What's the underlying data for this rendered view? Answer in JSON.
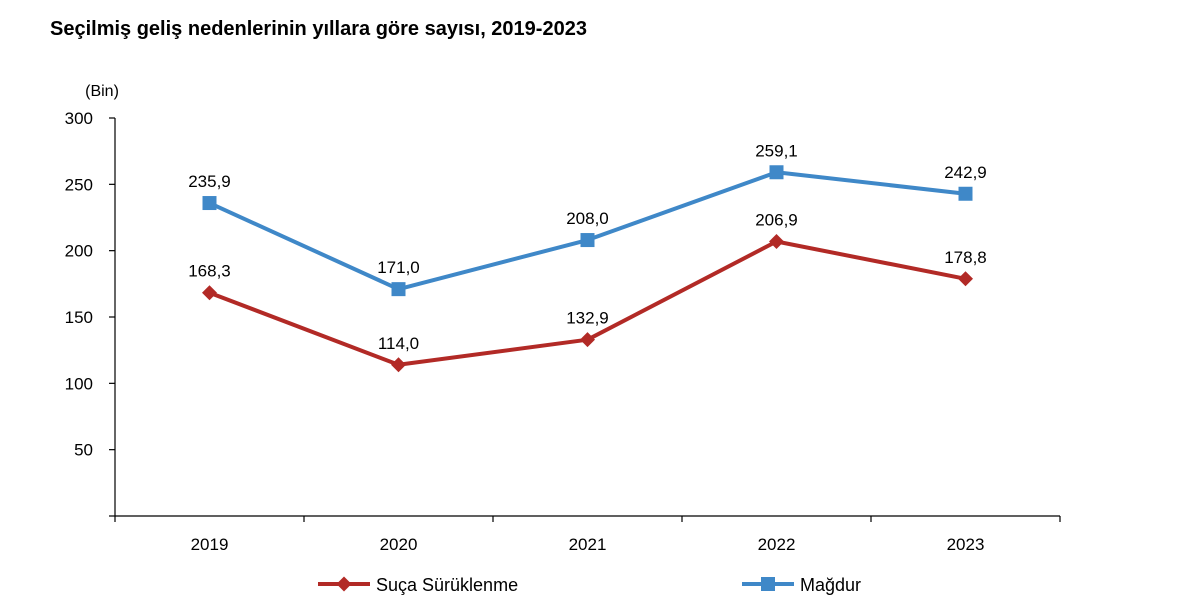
{
  "chart_data": {
    "type": "line",
    "title": "Seçilmiş geliş nedenlerinin yıllara göre sayısı, 2019-2023",
    "unit": "(Bin)",
    "categories": [
      "2019",
      "2020",
      "2021",
      "2022",
      "2023"
    ],
    "ylim": [
      0,
      300
    ],
    "yticks": [
      50,
      100,
      150,
      200,
      250,
      300
    ],
    "grid": false,
    "legend_position": "bottom",
    "series": [
      {
        "name": "Suça Sürüklenme",
        "values": [
          168.3,
          114.0,
          132.9,
          206.9,
          178.8
        ],
        "labels": [
          "168,3",
          "114,0",
          "132,9",
          "206,9",
          "178,8"
        ],
        "color": "#b22a26",
        "marker": "diamond"
      },
      {
        "name": "Mağdur",
        "values": [
          235.9,
          171.0,
          208.0,
          259.1,
          242.9
        ],
        "labels": [
          "235,9",
          "171,0",
          "208,0",
          "259,1",
          "242,9"
        ],
        "color": "#3f88c8",
        "marker": "square"
      }
    ]
  }
}
